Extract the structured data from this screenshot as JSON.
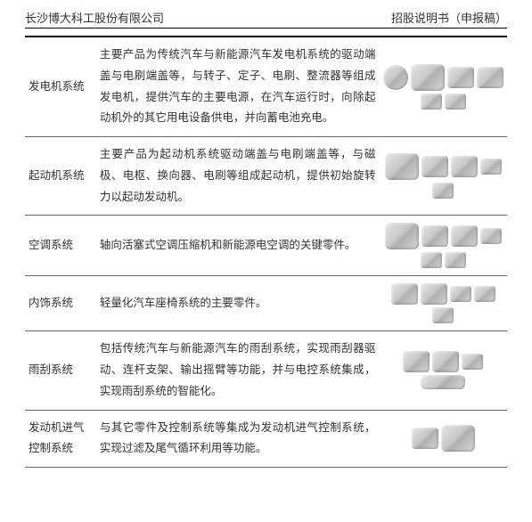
{
  "header": {
    "company": "长沙博大科工股份有限公司",
    "doctype": "招股说明书（申报稿）"
  },
  "rows": [
    {
      "name": "发电机系统",
      "desc": "主要产品为传统汽车与新能源汽车发电机系统的驱动端盖与电刷端盖等，与转子、定子、电刷、整流器等组成发电机，提供汽车的主要电源，在汽车运行时，向除起动机外的其它用电设备供电，并向蓄电池充电。"
    },
    {
      "name": "起动机系统",
      "desc": "主要产品为起动机系统驱动端盖与电刷端盖等，与磁极、电枢、换向器、电刷等组成起动机，提供初始旋转力以起动发动机。"
    },
    {
      "name": "空调系统",
      "desc": "轴向活塞式空调压缩机和新能源电空调的关键零件。"
    },
    {
      "name": "内饰系统",
      "desc": "轻量化汽车座椅系统的主要零件。"
    },
    {
      "name": "雨刮系统",
      "desc": "包括传统汽车与新能源汽车的雨刮系统，实现雨刮器驱动、连杆支架、输出摇臂等功能，并与电控系统集成，实现雨刮系统的智能化。"
    },
    {
      "name": "发动机进气控制系统",
      "desc": "与其它零件及控制系统等集成为发动机进气控制系统，实现过滤及尾气循环利用等功能。"
    }
  ]
}
